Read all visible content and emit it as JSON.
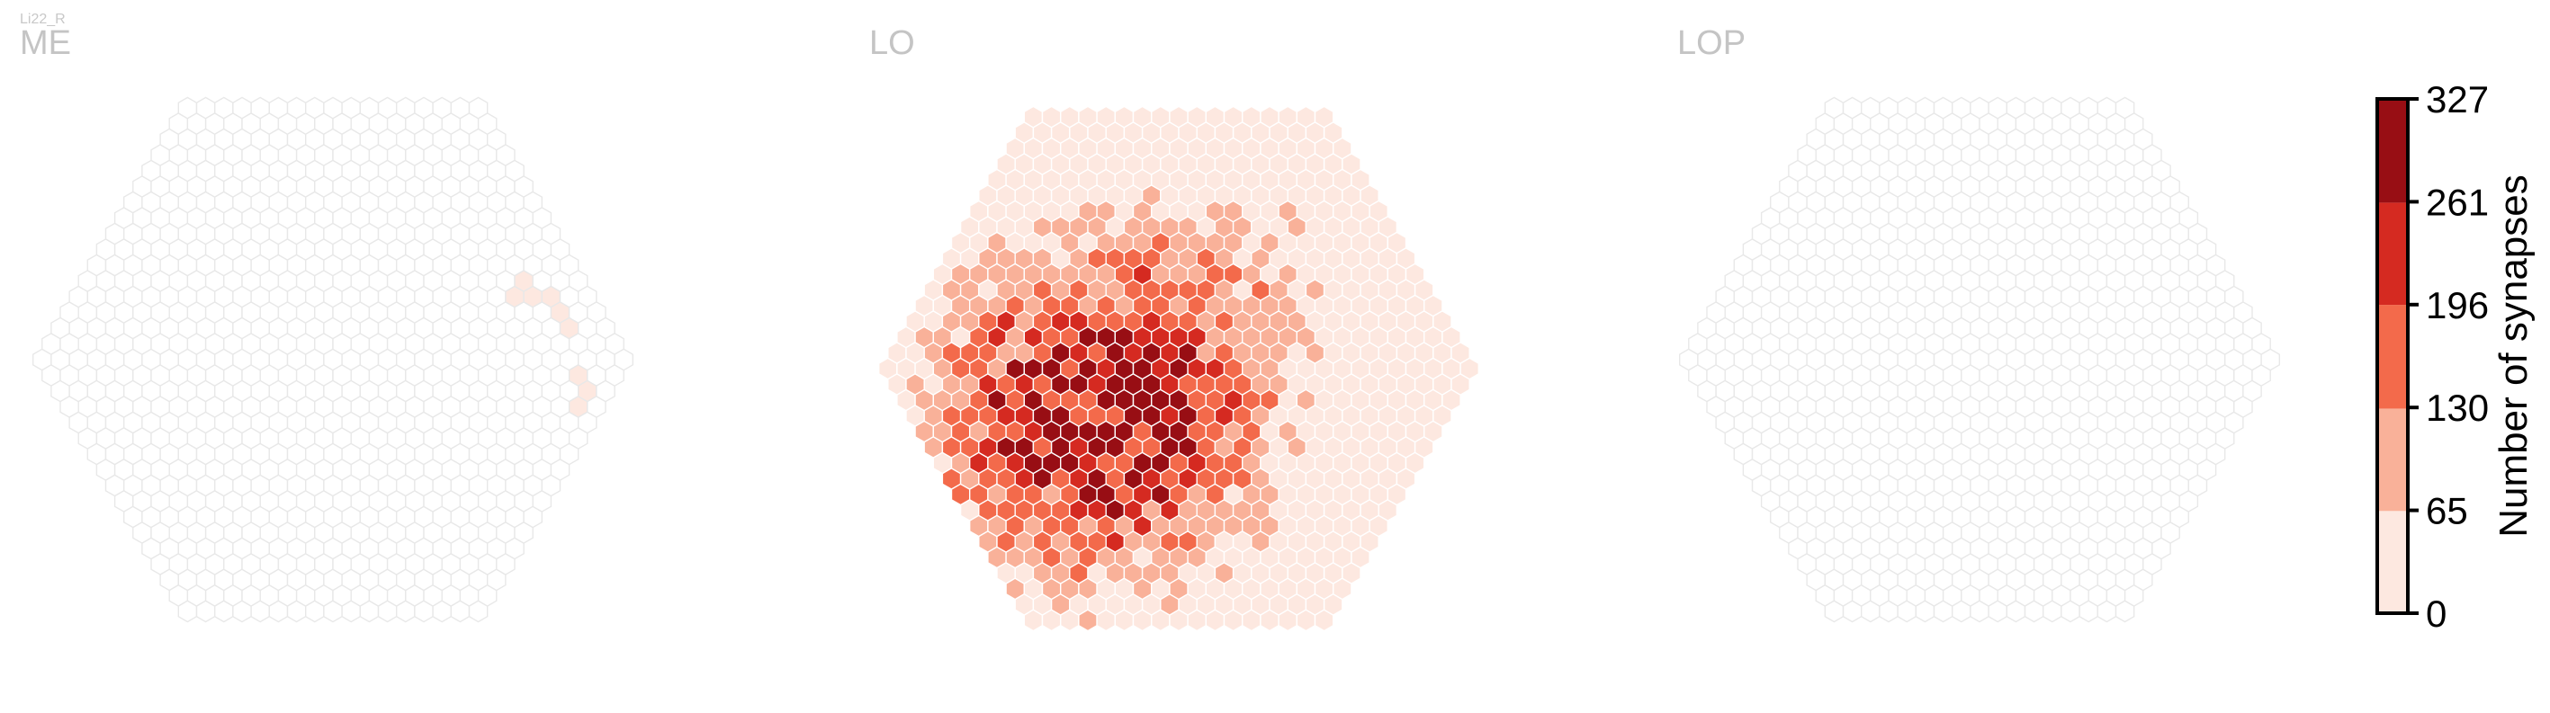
{
  "corner_label": "Li22_R",
  "chart_data": {
    "type": "heatmap",
    "cell_shape": "hexagon",
    "value_label": "Number of synapses",
    "colorbar": {
      "label": "Number of synapses",
      "ticks": [
        "0",
        "65",
        "130",
        "196",
        "261",
        "327"
      ],
      "range": [
        0,
        327
      ],
      "bins": [
        {
          "from": 0,
          "to": 65,
          "color": "#fde8e0"
        },
        {
          "from": 65,
          "to": 130,
          "color": "#f9b199"
        },
        {
          "from": 130,
          "to": 196,
          "color": "#f36a4b"
        },
        {
          "from": 196,
          "to": 261,
          "color": "#d52a21"
        },
        {
          "from": 261,
          "to": 327,
          "color": "#980e14"
        }
      ]
    },
    "empty_cell": {
      "fill": "#ffffff",
      "stroke": "#e8e8e8"
    },
    "missing_cell_color": "#cccccc",
    "panels": [
      {
        "title": "ME",
        "hex_radius_columns": 16,
        "summary": "Nearly all columns have no synapses; a small cluster of low-count columns (0-65) on the right edge.",
        "cells_low": [
          [
            12,
            -4
          ],
          [
            13,
            -5
          ],
          [
            13,
            -4
          ],
          [
            14,
            -4
          ],
          [
            14,
            -3
          ],
          [
            14,
            -2
          ],
          [
            13,
            1
          ],
          [
            13,
            2
          ],
          [
            12,
            3
          ]
        ]
      },
      {
        "title": "LO",
        "hex_radius_columns": 16,
        "summary": "Synapse counts across the lobula; highest counts (up to 327) concentrated left of center, decreasing toward the right; grey columns along the rim.",
        "peak_cells": [
          [
            -7,
            0
          ],
          [
            -6,
            1
          ],
          [
            -5,
            0
          ],
          [
            -8,
            3
          ],
          [
            -6,
            4
          ],
          [
            -2,
            2
          ],
          [
            -3,
            5
          ],
          [
            -4,
            6
          ]
        ]
      },
      {
        "title": "LOP",
        "hex_radius_columns": 16,
        "summary": "No synapses in any column; grey (missing) columns around the rim.",
        "cells_low": []
      }
    ]
  }
}
